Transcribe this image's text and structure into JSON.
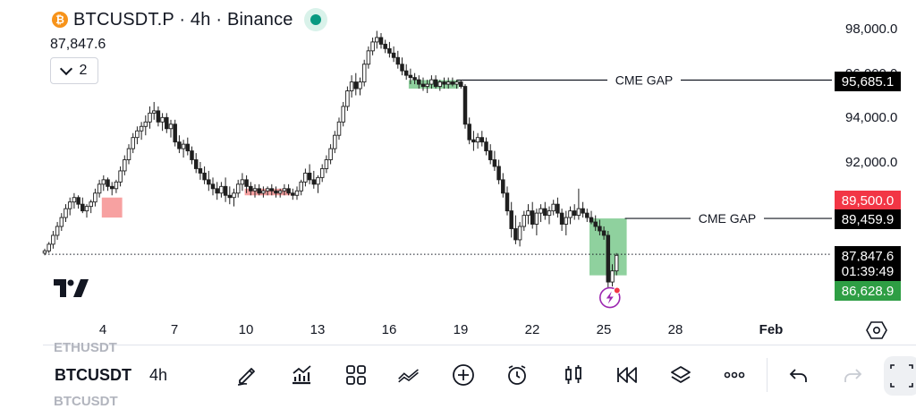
{
  "header": {
    "symbol": "BTCUSDT.P · 4h · Binance",
    "last_price": "87,847.6",
    "indicators_count": "2"
  },
  "price_axis": {
    "labels": [
      "98,000.0",
      "94,000.0",
      "92,000.0"
    ],
    "partial_label": "96,000.0",
    "tags": [
      {
        "text": "95,685.1",
        "bg": "#000000",
        "fg": "#ffffff"
      },
      {
        "text": "89,500.0",
        "bg": "#f23645",
        "fg": "#ffffff"
      },
      {
        "text": "89,459.9",
        "bg": "#000000",
        "fg": "#ffffff"
      },
      {
        "text": "87,847.6",
        "bg": "#000000",
        "fg": "#ffffff"
      },
      {
        "text": "01:39:49",
        "bg": "#000000",
        "fg": "#ffffff"
      },
      {
        "text": "86,628.9",
        "bg": "#2e9e44",
        "fg": "#ffffff"
      }
    ]
  },
  "time_axis": {
    "labels": [
      "4",
      "7",
      "10",
      "13",
      "16",
      "19",
      "22",
      "25",
      "28",
      "Feb"
    ]
  },
  "annotations": {
    "gap_upper": "CME GAP",
    "gap_lower": "CME GAP"
  },
  "toolbar": {
    "symbol": "BTCUSDT",
    "interval": "4h",
    "ghost_above": "ETHUSDT",
    "ghost_below": "BTCUSDT",
    "icons": [
      "pencil-icon",
      "indicators-icon",
      "layout-grid-icon",
      "compare-icon",
      "add-icon",
      "alert-clock-icon",
      "candles-icon",
      "replay-icon",
      "layers-icon",
      "more-icon",
      "undo-icon",
      "redo-icon"
    ]
  },
  "colors": {
    "up": "#1f1f1f",
    "down": "#1f1f1f",
    "gap_fill_green": "#8fd19e",
    "gap_fill_red": "#f7a1a1",
    "lightning_badge": "#9c27b0",
    "live": "#089981"
  },
  "chart_data": {
    "type": "candlestick",
    "symbol": "BTCUSDT.P",
    "interval": "4h",
    "exchange": "Binance",
    "x_ticks": [
      "4",
      "7",
      "10",
      "13",
      "16",
      "19",
      "22",
      "25",
      "28",
      "Feb"
    ],
    "y_ticks": [
      92000,
      94000,
      96000,
      98000
    ],
    "ylim": [
      85200,
      98600
    ],
    "last_price": 87847.6,
    "horizontal_levels": [
      {
        "label": "CME GAP",
        "price": 95685.1
      },
      {
        "label": "CME GAP",
        "price": 89459.9
      }
    ],
    "tag_levels": [
      89500.0,
      86628.9
    ],
    "candles": [
      [
        87900,
        88100,
        87800,
        88000
      ],
      [
        88000,
        88400,
        87900,
        88300
      ],
      [
        88300,
        88900,
        88100,
        88700
      ],
      [
        88700,
        89300,
        88500,
        89100
      ],
      [
        89100,
        89700,
        88900,
        89500
      ],
      [
        89500,
        90100,
        89300,
        89900
      ],
      [
        89900,
        90400,
        89600,
        90200
      ],
      [
        90200,
        90600,
        89900,
        90400
      ],
      [
        90400,
        90500,
        89900,
        90100
      ],
      [
        90100,
        90400,
        89700,
        89800
      ],
      [
        89800,
        90100,
        89500,
        90000
      ],
      [
        90000,
        90300,
        89700,
        90200
      ],
      [
        90200,
        90800,
        90000,
        90600
      ],
      [
        90600,
        91200,
        90400,
        91000
      ],
      [
        91000,
        91400,
        90700,
        91200
      ],
      [
        91200,
        91300,
        90700,
        90900
      ],
      [
        90900,
        91100,
        90500,
        90800
      ],
      [
        90800,
        91200,
        90600,
        91100
      ],
      [
        91100,
        91800,
        90900,
        91600
      ],
      [
        91600,
        92300,
        91400,
        92100
      ],
      [
        92100,
        92800,
        91900,
        92600
      ],
      [
        92600,
        93300,
        92400,
        93100
      ],
      [
        93100,
        93600,
        92800,
        93400
      ],
      [
        93400,
        93800,
        93000,
        93600
      ],
      [
        93600,
        94100,
        93200,
        93800
      ],
      [
        93800,
        94500,
        93500,
        94200
      ],
      [
        94200,
        94700,
        93900,
        94300
      ],
      [
        94300,
        94500,
        93600,
        93800
      ],
      [
        93800,
        94200,
        93400,
        94000
      ],
      [
        94000,
        94200,
        93300,
        93500
      ],
      [
        93500,
        93900,
        93100,
        93700
      ],
      [
        93700,
        93900,
        92700,
        92900
      ],
      [
        92900,
        93200,
        92400,
        92600
      ],
      [
        92600,
        93000,
        92200,
        92800
      ],
      [
        92800,
        93100,
        92300,
        92500
      ],
      [
        92500,
        92700,
        91900,
        92100
      ],
      [
        92100,
        92400,
        91500,
        91700
      ],
      [
        91700,
        92000,
        91200,
        91500
      ],
      [
        91500,
        91800,
        91000,
        91200
      ],
      [
        91200,
        91600,
        90700,
        91000
      ],
      [
        91000,
        91300,
        90500,
        90800
      ],
      [
        90800,
        91100,
        90300,
        90600
      ],
      [
        90600,
        91100,
        90400,
        90900
      ],
      [
        90900,
        91300,
        90200,
        90500
      ],
      [
        90500,
        90900,
        90100,
        90400
      ],
      [
        90400,
        90800,
        90000,
        90600
      ],
      [
        90600,
        91200,
        90400,
        91000
      ],
      [
        91000,
        91500,
        90700,
        91200
      ],
      [
        91200,
        91400,
        90600,
        90900
      ],
      [
        90900,
        91100,
        90500,
        90700
      ],
      [
        90700,
        91000,
        90400,
        90800
      ],
      [
        90800,
        91000,
        90500,
        90600
      ],
      [
        90600,
        90900,
        90400,
        90700
      ],
      [
        90700,
        90900,
        90500,
        90800
      ],
      [
        90800,
        91000,
        90500,
        90700
      ],
      [
        90700,
        90900,
        90400,
        90600
      ],
      [
        90600,
        90800,
        90400,
        90700
      ],
      [
        90700,
        91000,
        90500,
        90800
      ],
      [
        90800,
        91000,
        90500,
        90600
      ],
      [
        90600,
        90800,
        90300,
        90500
      ],
      [
        90500,
        90900,
        90300,
        90700
      ],
      [
        90700,
        91200,
        90500,
        91100
      ],
      [
        91100,
        91700,
        90900,
        91500
      ],
      [
        91500,
        91900,
        91000,
        91200
      ],
      [
        91200,
        91600,
        90800,
        91000
      ],
      [
        91000,
        91400,
        90600,
        91300
      ],
      [
        91300,
        91900,
        91100,
        91700
      ],
      [
        91700,
        92300,
        91500,
        92100
      ],
      [
        92100,
        92800,
        91900,
        92600
      ],
      [
        92600,
        93400,
        92400,
        93200
      ],
      [
        93200,
        94000,
        93000,
        93800
      ],
      [
        93800,
        94700,
        93600,
        94500
      ],
      [
        94500,
        95400,
        94300,
        95200
      ],
      [
        95200,
        95900,
        94900,
        95600
      ],
      [
        95600,
        96000,
        95000,
        95300
      ],
      [
        95300,
        95800,
        95000,
        95600
      ],
      [
        95600,
        96600,
        95400,
        96400
      ],
      [
        96400,
        97200,
        96200,
        97000
      ],
      [
        97000,
        97600,
        96800,
        97400
      ],
      [
        97400,
        97900,
        97100,
        97600
      ],
      [
        97600,
        97800,
        97100,
        97300
      ],
      [
        97300,
        97500,
        96900,
        97100
      ],
      [
        97100,
        97400,
        96700,
        96900
      ],
      [
        96900,
        97200,
        96500,
        96700
      ],
      [
        96700,
        97000,
        96200,
        96400
      ],
      [
        96400,
        96700,
        95900,
        96100
      ],
      [
        96100,
        96400,
        95700,
        95900
      ],
      [
        95900,
        96200,
        95500,
        95800
      ],
      [
        95800,
        96000,
        95500,
        95700
      ],
      [
        95700,
        95900,
        95300,
        95500
      ],
      [
        95500,
        95800,
        95200,
        95400
      ],
      [
        95400,
        95700,
        95100,
        95500
      ],
      [
        95500,
        95900,
        95300,
        95700
      ],
      [
        95700,
        95900,
        95300,
        95400
      ],
      [
        95400,
        95700,
        95200,
        95600
      ],
      [
        95600,
        95800,
        95300,
        95500
      ],
      [
        95500,
        95800,
        95300,
        95600
      ],
      [
        95600,
        95800,
        95400,
        95500
      ],
      [
        95500,
        95700,
        95300,
        95600
      ],
      [
        95600,
        95700,
        95300,
        95400
      ],
      [
        95400,
        95500,
        93500,
        93700
      ],
      [
        93700,
        94000,
        92800,
        93000
      ],
      [
        93000,
        93400,
        92500,
        92900
      ],
      [
        92900,
        93300,
        92600,
        93100
      ],
      [
        93100,
        93400,
        92700,
        92900
      ],
      [
        92900,
        93100,
        92300,
        92500
      ],
      [
        92500,
        92800,
        91900,
        92100
      ],
      [
        92100,
        92500,
        91600,
        91800
      ],
      [
        91800,
        92100,
        91000,
        91200
      ],
      [
        91200,
        91500,
        90400,
        90600
      ],
      [
        90600,
        90900,
        89600,
        89800
      ],
      [
        89800,
        90200,
        88600,
        89000
      ],
      [
        89000,
        89600,
        88300,
        88500
      ],
      [
        88500,
        89300,
        88200,
        89100
      ],
      [
        89100,
        89800,
        88900,
        89600
      ],
      [
        89600,
        90100,
        89200,
        89800
      ],
      [
        89800,
        90200,
        89000,
        89200
      ],
      [
        89200,
        89900,
        88700,
        89700
      ],
      [
        89700,
        90100,
        89300,
        89900
      ],
      [
        89900,
        90200,
        89400,
        89600
      ],
      [
        89600,
        90000,
        89200,
        89800
      ],
      [
        89800,
        90300,
        89600,
        90100
      ],
      [
        90100,
        90400,
        89500,
        89700
      ],
      [
        89700,
        89900,
        88900,
        89200
      ],
      [
        89200,
        89800,
        88700,
        89500
      ],
      [
        89500,
        90000,
        89200,
        89800
      ],
      [
        89800,
        90100,
        89400,
        89600
      ],
      [
        89600,
        90800,
        89400,
        89900
      ],
      [
        89900,
        90200,
        89500,
        89700
      ],
      [
        89700,
        89900,
        89300,
        89500
      ],
      [
        89500,
        89800,
        89200,
        89300
      ],
      [
        89300,
        89600,
        88900,
        89100
      ],
      [
        89100,
        89400,
        88700,
        88900
      ],
      [
        88900,
        89100,
        88500,
        88700
      ],
      [
        88700,
        88900,
        86300,
        86600
      ],
      [
        86600,
        87400,
        86400,
        87100
      ],
      [
        87100,
        87900,
        86900,
        87800
      ]
    ]
  }
}
